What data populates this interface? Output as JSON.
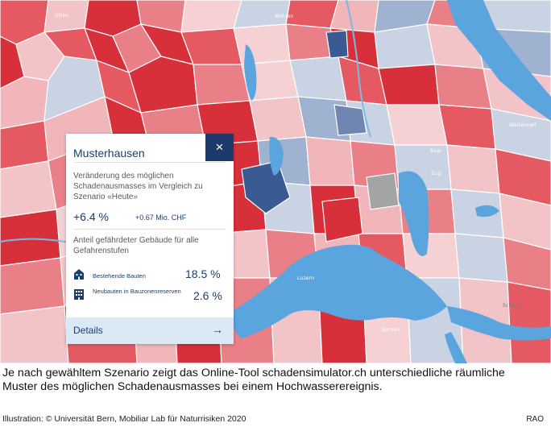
{
  "popup": {
    "title": "Musterhausen",
    "close_symbol": "×",
    "change_description": "Veränderung des möglichen Schadenausmasses im Vergleich zu Szenario «Heute»",
    "change_percent": "+6.4 %",
    "change_chf": "+0.67 Mio. CHF",
    "share_description": "Anteil gefährdeter Gebäude für alle Gefahrenstufen",
    "rows": [
      {
        "icon": "house-icon",
        "label": "Bestehende Bauten",
        "value": "18.5 %"
      },
      {
        "icon": "building-icon",
        "label": "Neubauten in Bauzonenreserven",
        "value": "2.6 %"
      }
    ],
    "details_label": "Details",
    "details_arrow": "→"
  },
  "map_labels": [
    "Olten",
    "Wohlen",
    "Wädenswil",
    "Baar",
    "Zug",
    "Schwyz",
    "Luzern",
    "Sarnen"
  ],
  "colors": {
    "accent_navy": "#1d3b6a",
    "text_blue": "#1a3f6f",
    "details_bg": "#dbe9f4",
    "lake_blue": "#5aa5dd",
    "damage_high": "#d7303a",
    "damage_low": "#3a5a93"
  },
  "caption": "Je nach gewähltem Szenario zeigt das Online-Tool schadensimulator.ch unterschiedliche räumliche Muster des möglichen Schadenausmasses bei einem Hochwasserereignis.",
  "credit": "Illustration: © Universität Bern, Mobiliar Lab für Naturrisiken 2020",
  "agency": "RAO"
}
